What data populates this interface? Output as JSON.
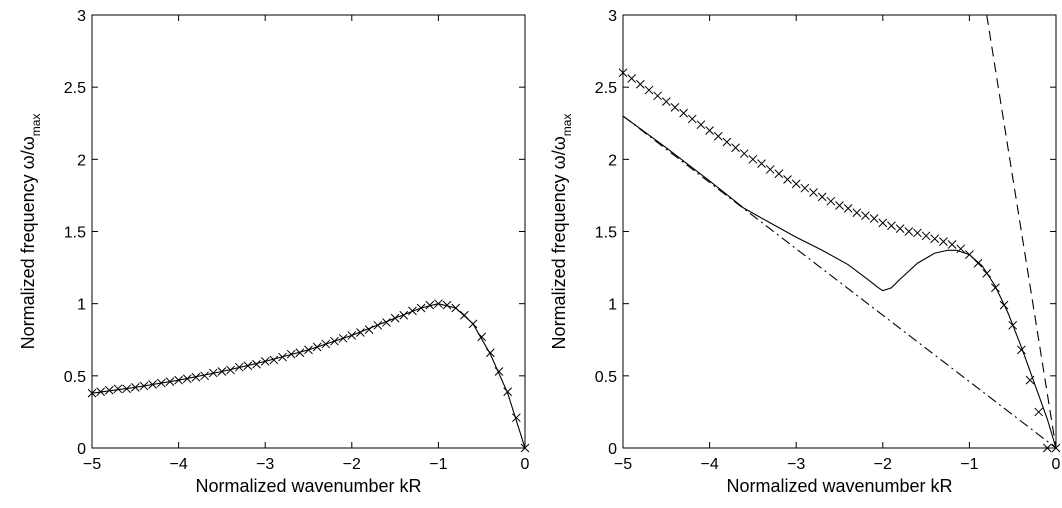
{
  "chart_data": [
    {
      "type": "line",
      "xlabel": "Normalized wavenumber kR",
      "ylabel": {
        "main": "Normalized frequency ω/ω",
        "sub": "max"
      },
      "xlim": [
        -5,
        0
      ],
      "ylim": [
        0,
        3
      ],
      "xticks": [
        -5,
        -4,
        -3,
        -2,
        -1,
        0
      ],
      "yticks": [
        0,
        0.5,
        1,
        1.5,
        2,
        2.5,
        3
      ],
      "xtick_labels": [
        "−5",
        "−4",
        "−3",
        "−2",
        "−1",
        "0"
      ],
      "ytick_labels": [
        "0",
        "0.5",
        "1",
        "1.5",
        "2",
        "2.5",
        "3"
      ],
      "grid": false,
      "series": [
        {
          "style": "solid",
          "color": "#000000",
          "x": [
            -5,
            -4.5,
            -4,
            -3.5,
            -3,
            -2.5,
            -2,
            -1.5,
            -1.2,
            -1.0,
            -0.8,
            -0.6,
            -0.4,
            -0.2,
            0
          ],
          "y": [
            0.38,
            0.42,
            0.47,
            0.53,
            0.6,
            0.68,
            0.78,
            0.9,
            0.97,
            1.0,
            0.97,
            0.86,
            0.65,
            0.38,
            0.0
          ]
        },
        {
          "style": "markers",
          "marker": "x",
          "color": "#000000",
          "x": [
            -5,
            -4.9,
            -4.8,
            -4.7,
            -4.6,
            -4.5,
            -4.4,
            -4.3,
            -4.2,
            -4.1,
            -4.0,
            -3.9,
            -3.8,
            -3.7,
            -3.6,
            -3.5,
            -3.4,
            -3.3,
            -3.2,
            -3.1,
            -3.0,
            -2.9,
            -2.8,
            -2.7,
            -2.6,
            -2.5,
            -2.4,
            -2.3,
            -2.2,
            -2.1,
            -2.0,
            -1.9,
            -1.8,
            -1.7,
            -1.6,
            -1.5,
            -1.4,
            -1.3,
            -1.2,
            -1.1,
            -1.0,
            -0.9,
            -0.8,
            -0.7,
            -0.6,
            -0.5,
            -0.4,
            -0.3,
            -0.2,
            -0.1,
            0
          ],
          "y": [
            0.38,
            0.39,
            0.4,
            0.41,
            0.41,
            0.42,
            0.43,
            0.44,
            0.45,
            0.46,
            0.47,
            0.48,
            0.49,
            0.5,
            0.52,
            0.53,
            0.54,
            0.56,
            0.57,
            0.58,
            0.6,
            0.61,
            0.63,
            0.65,
            0.66,
            0.68,
            0.7,
            0.72,
            0.74,
            0.76,
            0.78,
            0.8,
            0.82,
            0.85,
            0.87,
            0.9,
            0.92,
            0.95,
            0.97,
            0.99,
            1.0,
            0.99,
            0.97,
            0.92,
            0.86,
            0.77,
            0.66,
            0.53,
            0.39,
            0.21,
            0.0
          ]
        }
      ]
    },
    {
      "type": "line",
      "xlabel": "Normalized wavenumber kR",
      "ylabel": {
        "main": "Normalized frequency ω/ω",
        "sub": "max"
      },
      "xlim": [
        -5,
        0
      ],
      "ylim": [
        0,
        3
      ],
      "xticks": [
        -5,
        -4,
        -3,
        -2,
        -1,
        0
      ],
      "yticks": [
        0,
        0.5,
        1,
        1.5,
        2,
        2.5,
        3
      ],
      "xtick_labels": [
        "−5",
        "−4",
        "−3",
        "−2",
        "−1",
        "0"
      ],
      "ytick_labels": [
        "0",
        "0.5",
        "1",
        "1.5",
        "2",
        "2.5",
        "3"
      ],
      "grid": false,
      "series": [
        {
          "style": "dashed",
          "color": "#000000",
          "x": [
            -0.8,
            -0.6,
            -0.4,
            -0.2,
            0
          ],
          "y": [
            3.0,
            2.25,
            1.5,
            0.75,
            0.0
          ]
        },
        {
          "style": "dashdot",
          "color": "#000000",
          "x": [
            -5,
            0
          ],
          "y": [
            2.3,
            0.0
          ]
        },
        {
          "style": "solid",
          "color": "#000000",
          "x": [
            -5,
            -4.5,
            -4.0,
            -3.6,
            -3.3,
            -3.0,
            -2.7,
            -2.4,
            -2.2,
            -2.05,
            -2.0,
            -1.9,
            -1.8,
            -1.6,
            -1.4,
            -1.25,
            -1.15,
            -1.0,
            -0.85,
            -0.7,
            -0.55,
            -0.4,
            -0.25,
            -0.1,
            0
          ],
          "y": [
            2.3,
            2.08,
            1.85,
            1.66,
            1.56,
            1.46,
            1.37,
            1.27,
            1.18,
            1.11,
            1.09,
            1.11,
            1.17,
            1.28,
            1.35,
            1.37,
            1.37,
            1.34,
            1.26,
            1.12,
            0.93,
            0.7,
            0.45,
            0.2,
            0.0
          ]
        },
        {
          "style": "markers",
          "marker": "x",
          "color": "#000000",
          "x": [
            -5,
            -4.9,
            -4.8,
            -4.7,
            -4.6,
            -4.5,
            -4.4,
            -4.3,
            -4.2,
            -4.1,
            -4.0,
            -3.9,
            -3.8,
            -3.7,
            -3.6,
            -3.5,
            -3.4,
            -3.3,
            -3.2,
            -3.1,
            -3.0,
            -2.9,
            -2.8,
            -2.7,
            -2.6,
            -2.5,
            -2.4,
            -2.3,
            -2.2,
            -2.1,
            -2.0,
            -1.9,
            -1.8,
            -1.7,
            -1.6,
            -1.5,
            -1.4,
            -1.3,
            -1.2,
            -1.1,
            -1.0,
            -0.9,
            -0.8,
            -0.7,
            -0.6,
            -0.5,
            -0.4,
            -0.3,
            -0.2,
            -0.1,
            0
          ],
          "y": [
            2.6,
            2.56,
            2.52,
            2.48,
            2.44,
            2.4,
            2.36,
            2.32,
            2.28,
            2.24,
            2.2,
            2.16,
            2.12,
            2.08,
            2.04,
            2.0,
            1.97,
            1.93,
            1.9,
            1.86,
            1.83,
            1.8,
            1.77,
            1.74,
            1.71,
            1.68,
            1.66,
            1.63,
            1.61,
            1.59,
            1.56,
            1.54,
            1.52,
            1.5,
            1.49,
            1.47,
            1.45,
            1.43,
            1.41,
            1.38,
            1.34,
            1.28,
            1.21,
            1.11,
            0.99,
            0.85,
            0.68,
            0.47,
            0.25,
            0.0,
            0.0
          ]
        }
      ]
    }
  ]
}
